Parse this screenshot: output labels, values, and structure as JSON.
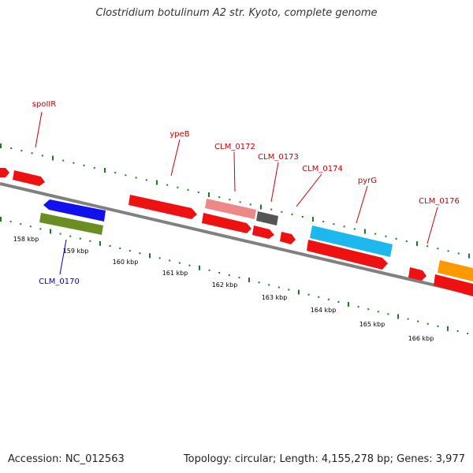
{
  "title": "Clostridium botulinum A2 str. Kyoto, complete genome",
  "accession": "Accession: NC_012563",
  "stats": "Topology: circular; Length: 4,155,278 bp; Genes: 3,977",
  "colors": {
    "backbone": "#808080",
    "ticks": "#1e7a1e",
    "label_red": "#cc0000",
    "label_blue": "#0000cc",
    "gene_red": "#ee1111",
    "gene_pink": "#ee8888",
    "gene_gray": "#555555",
    "gene_blue": "#1111ee",
    "gene_olive": "#6b8e23",
    "gene_cyan": "#1cb8ee",
    "gene_orange": "#ff9900"
  },
  "scale_labels": [
    "158 kbp",
    "159 kbp",
    "160 kbp",
    "161 kbp",
    "162 kbp",
    "163 kbp",
    "164 kbp",
    "165 kbp",
    "166 kbp"
  ],
  "gene_labels": [
    {
      "id": "spoIIR",
      "text": "spoIIR",
      "color": "red"
    },
    {
      "id": "ypeB",
      "text": "ypeB",
      "color": "red"
    },
    {
      "id": "CLM_0172",
      "text": "CLM_0172",
      "color": "red"
    },
    {
      "id": "CLM_0173",
      "text": "CLM_0173",
      "color": "red"
    },
    {
      "id": "CLM_0174",
      "text": "CLM_0174",
      "color": "red"
    },
    {
      "id": "pyrG",
      "text": "pyrG",
      "color": "red"
    },
    {
      "id": "CLM_0176",
      "text": "CLM_0176",
      "color": "red"
    },
    {
      "id": "CLM_0170",
      "text": "CLM_0170",
      "color": "blue"
    }
  ]
}
